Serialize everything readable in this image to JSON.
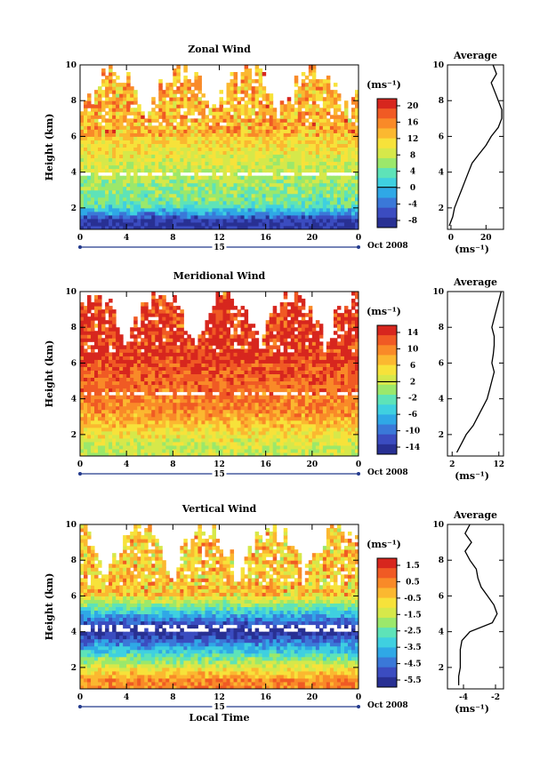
{
  "figure": {
    "xlabel": "Local Time",
    "date_label": "Oct 2008",
    "day_label": "15",
    "ylabel": "Height (km)",
    "colorbar_unit": "(ms⁻¹)",
    "avg_xlabel": "(ms⁻¹)",
    "avg_title": "Average"
  },
  "chart_data": [
    {
      "type": "heatmap",
      "title": "Zonal Wind",
      "ylabel": "Height (km)",
      "x_ticks": [
        "0",
        "4",
        "8",
        "12",
        "16",
        "20",
        "0"
      ],
      "x_range": [
        0,
        24
      ],
      "y_ticks": [
        "2",
        "4",
        "6",
        "8",
        "10"
      ],
      "ylim": [
        0.8,
        10
      ],
      "colorbar": {
        "ticks": [
          "20",
          "16",
          "12",
          "8",
          "4",
          "0",
          "-4",
          "-8"
        ],
        "range": [
          -10,
          22
        ],
        "zero_line": 0
      },
      "field": {
        "surface": -8,
        "low_ceiling": 2.2,
        "mid_value": 4,
        "upper_value": 12,
        "gap_height": 3.9
      },
      "average": {
        "title": "Average",
        "x_ticks": [
          "0",
          "20"
        ],
        "xlim": [
          -2,
          30
        ],
        "y_ticks": [
          "2",
          "4",
          "6",
          "8",
          "10"
        ],
        "heights": [
          1.0,
          1.5,
          2.0,
          2.5,
          3.0,
          3.5,
          4.0,
          4.5,
          5.0,
          5.5,
          6.0,
          6.5,
          7.0,
          7.5,
          8.0,
          8.5,
          9.0,
          9.5,
          10.0
        ],
        "values": [
          -1,
          1,
          2,
          4,
          6,
          8,
          10,
          12,
          16,
          20,
          23,
          27,
          29,
          29,
          27,
          25,
          23,
          26,
          24
        ]
      }
    },
    {
      "type": "heatmap",
      "title": "Meridional Wind",
      "ylabel": "Height (km)",
      "x_ticks": [
        "0",
        "4",
        "8",
        "12",
        "16",
        "20",
        "0"
      ],
      "x_range": [
        0,
        24
      ],
      "y_ticks": [
        "2",
        "4",
        "6",
        "8",
        "10"
      ],
      "ylim": [
        0.8,
        10
      ],
      "colorbar": {
        "ticks": [
          "14",
          "10",
          "6",
          "2",
          "-2",
          "-6",
          "-10",
          "-14"
        ],
        "range": [
          -16,
          16
        ],
        "zero_line": 2
      },
      "field": {
        "surface": 2,
        "low_ceiling": 3.5,
        "mid_value": 10,
        "upper_value": 13,
        "gap_height": 4.3
      },
      "average": {
        "title": "Average",
        "x_ticks": [
          "2",
          "12"
        ],
        "xlim": [
          1,
          13
        ],
        "y_ticks": [
          "2",
          "4",
          "6",
          "8",
          "10"
        ],
        "heights": [
          1.0,
          1.5,
          2.0,
          2.5,
          3.0,
          3.5,
          4.0,
          4.5,
          5.0,
          5.5,
          6.0,
          6.5,
          7.0,
          7.5,
          8.0,
          8.5,
          9.0,
          9.5,
          10.0
        ],
        "values": [
          3,
          4,
          5,
          6.5,
          7.5,
          8.5,
          9.5,
          10,
          10.5,
          11,
          10.5,
          10.8,
          11,
          11,
          10.5,
          11,
          11.5,
          12,
          12.5
        ]
      }
    },
    {
      "type": "heatmap",
      "title": "Vertical Wind",
      "ylabel": "Height (km)",
      "x_ticks": [
        "0",
        "4",
        "8",
        "12",
        "16",
        "20",
        "0"
      ],
      "x_range": [
        0,
        24
      ],
      "y_ticks": [
        "2",
        "4",
        "6",
        "8",
        "10"
      ],
      "ylim": [
        0.8,
        10
      ],
      "colorbar": {
        "ticks": [
          "1.5",
          "0.5",
          "-0.5",
          "-1.5",
          "-2.5",
          "-3.5",
          "-4.5",
          "-5.5"
        ],
        "range": [
          -6,
          2
        ]
      },
      "field": {
        "surface": 0.5,
        "low_ceiling": 4.1,
        "mid_value": -6,
        "upper_value": -0.8,
        "gap_height": 4.2
      },
      "average": {
        "title": "Average",
        "x_ticks": [
          "-4",
          "-2"
        ],
        "xlim": [
          -5,
          -1.5
        ],
        "y_ticks": [
          "2",
          "4",
          "6",
          "8",
          "10"
        ],
        "heights": [
          1.0,
          1.5,
          2.0,
          2.5,
          3.0,
          3.5,
          4.0,
          4.5,
          5.0,
          5.5,
          6.0,
          6.5,
          7.0,
          7.5,
          8.0,
          8.5,
          9.0,
          9.5,
          10.0
        ],
        "values": [
          -4.3,
          -4.3,
          -4.2,
          -4.2,
          -4.2,
          -4.1,
          -3.6,
          -2.2,
          -1.9,
          -2.1,
          -2.5,
          -2.9,
          -3.1,
          -3.2,
          -3.6,
          -3.9,
          -3.5,
          -3.9,
          -3.6
        ]
      }
    }
  ]
}
